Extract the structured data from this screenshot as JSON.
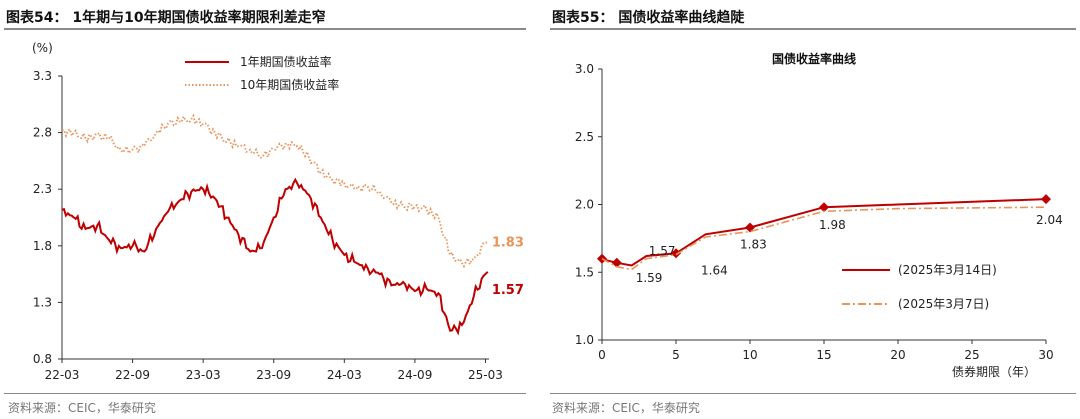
{
  "figures": [
    {
      "title": "图表54：  1年期与10年期国债收益率期限利差走窄",
      "source": "资料来源：CEIC，华泰研究"
    },
    {
      "title": "图表55：  国债收益率曲线趋陡",
      "source": "资料来源：CEIC，华泰研究"
    }
  ],
  "chart_data": [
    {
      "type": "line",
      "title": "",
      "ylabel": "(%)",
      "xlabel": "",
      "ylim": [
        0.8,
        3.3
      ],
      "yticks": [
        "0.8",
        "1.3",
        "1.8",
        "2.3",
        "2.8",
        "3.3"
      ],
      "xticks": [
        "22-03",
        "22-09",
        "23-03",
        "23-09",
        "24-03",
        "24-09",
        "25-03"
      ],
      "grid": false,
      "legend_position": "top-center",
      "series": [
        {
          "name": "1年期国债收益率",
          "color": "#c00000",
          "style": "solid",
          "end_label": "1.57",
          "points": [
            [
              "22-03",
              2.12
            ],
            [
              "22-04",
              2.05
            ],
            [
              "22-05",
              1.95
            ],
            [
              "22-06",
              1.98
            ],
            [
              "22-07",
              1.85
            ],
            [
              "22-08",
              1.78
            ],
            [
              "22-09",
              1.8
            ],
            [
              "22-10",
              1.75
            ],
            [
              "22-11",
              1.95
            ],
            [
              "22-12",
              2.1
            ],
            [
              "23-01",
              2.2
            ],
            [
              "23-02",
              2.28
            ],
            [
              "23-03",
              2.3
            ],
            [
              "23-04",
              2.22
            ],
            [
              "23-05",
              2.05
            ],
            [
              "23-06",
              1.9
            ],
            [
              "23-07",
              1.75
            ],
            [
              "23-08",
              1.78
            ],
            [
              "23-09",
              2.05
            ],
            [
              "23-10",
              2.3
            ],
            [
              "23-11",
              2.35
            ],
            [
              "23-12",
              2.25
            ],
            [
              "24-01",
              2.05
            ],
            [
              "24-02",
              1.85
            ],
            [
              "24-03",
              1.72
            ],
            [
              "24-04",
              1.65
            ],
            [
              "24-05",
              1.6
            ],
            [
              "24-06",
              1.55
            ],
            [
              "24-07",
              1.45
            ],
            [
              "24-08",
              1.48
            ],
            [
              "24-09",
              1.4
            ],
            [
              "24-10",
              1.42
            ],
            [
              "24-11",
              1.38
            ],
            [
              "24-12",
              1.05
            ],
            [
              "25-01",
              1.1
            ],
            [
              "25-02",
              1.35
            ],
            [
              "25-03",
              1.57
            ]
          ]
        },
        {
          "name": "10年期国债收益率",
          "color": "#e8945a",
          "style": "dotted",
          "end_label": "1.83",
          "points": [
            [
              "22-03",
              2.82
            ],
            [
              "22-04",
              2.8
            ],
            [
              "22-05",
              2.75
            ],
            [
              "22-06",
              2.78
            ],
            [
              "22-07",
              2.75
            ],
            [
              "22-08",
              2.65
            ],
            [
              "22-09",
              2.65
            ],
            [
              "22-10",
              2.68
            ],
            [
              "22-11",
              2.8
            ],
            [
              "22-12",
              2.88
            ],
            [
              "23-01",
              2.9
            ],
            [
              "23-02",
              2.92
            ],
            [
              "23-03",
              2.88
            ],
            [
              "23-04",
              2.8
            ],
            [
              "23-05",
              2.72
            ],
            [
              "23-06",
              2.68
            ],
            [
              "23-07",
              2.65
            ],
            [
              "23-08",
              2.58
            ],
            [
              "23-09",
              2.65
            ],
            [
              "23-10",
              2.7
            ],
            [
              "23-11",
              2.68
            ],
            [
              "23-12",
              2.58
            ],
            [
              "24-01",
              2.45
            ],
            [
              "24-02",
              2.38
            ],
            [
              "24-03",
              2.35
            ],
            [
              "24-04",
              2.3
            ],
            [
              "24-05",
              2.32
            ],
            [
              "24-06",
              2.28
            ],
            [
              "24-07",
              2.18
            ],
            [
              "24-08",
              2.15
            ],
            [
              "24-09",
              2.15
            ],
            [
              "24-10",
              2.12
            ],
            [
              "24-11",
              2.05
            ],
            [
              "24-12",
              1.72
            ],
            [
              "25-01",
              1.65
            ],
            [
              "25-02",
              1.68
            ],
            [
              "25-03",
              1.83
            ]
          ]
        }
      ]
    },
    {
      "type": "line",
      "title": "国债收益率曲线",
      "ylabel": "",
      "xlabel": "债券期限（年）",
      "xlim": [
        0,
        30
      ],
      "ylim": [
        1.0,
        3.0
      ],
      "xticks": [
        0,
        5,
        10,
        15,
        20,
        25,
        30
      ],
      "yticks": [
        "1.0",
        "1.5",
        "2.0",
        "2.5",
        "3.0"
      ],
      "grid": false,
      "legend_position": "bottom-right",
      "point_labels": [
        {
          "x": 0.25,
          "y": 1.59,
          "text": "1.59"
        },
        {
          "x": 1,
          "y": 1.57,
          "text": "1.57"
        },
        {
          "x": 5,
          "y": 1.64,
          "text": "1.64"
        },
        {
          "x": 10,
          "y": 1.83,
          "text": "1.83"
        },
        {
          "x": 15,
          "y": 1.98,
          "text": "1.98"
        },
        {
          "x": 30,
          "y": 2.04,
          "text": "2.04"
        }
      ],
      "series": [
        {
          "name": "(2025年3月14日)",
          "color": "#c00000",
          "style": "solid",
          "x": [
            0,
            0.25,
            1,
            2,
            3,
            5,
            7,
            10,
            15,
            20,
            30
          ],
          "values": [
            1.6,
            1.59,
            1.57,
            1.55,
            1.62,
            1.64,
            1.78,
            1.83,
            1.98,
            2.0,
            2.04
          ],
          "markers_at": [
            0,
            1,
            5,
            10,
            15,
            30
          ]
        },
        {
          "name": "(2025年3月7日)",
          "color": "#e8945a",
          "style": "dashdot",
          "x": [
            0,
            1,
            2,
            3,
            5,
            7,
            10,
            15,
            20,
            30
          ],
          "values": [
            1.6,
            1.54,
            1.52,
            1.6,
            1.63,
            1.76,
            1.8,
            1.95,
            1.97,
            1.98
          ]
        }
      ]
    }
  ]
}
